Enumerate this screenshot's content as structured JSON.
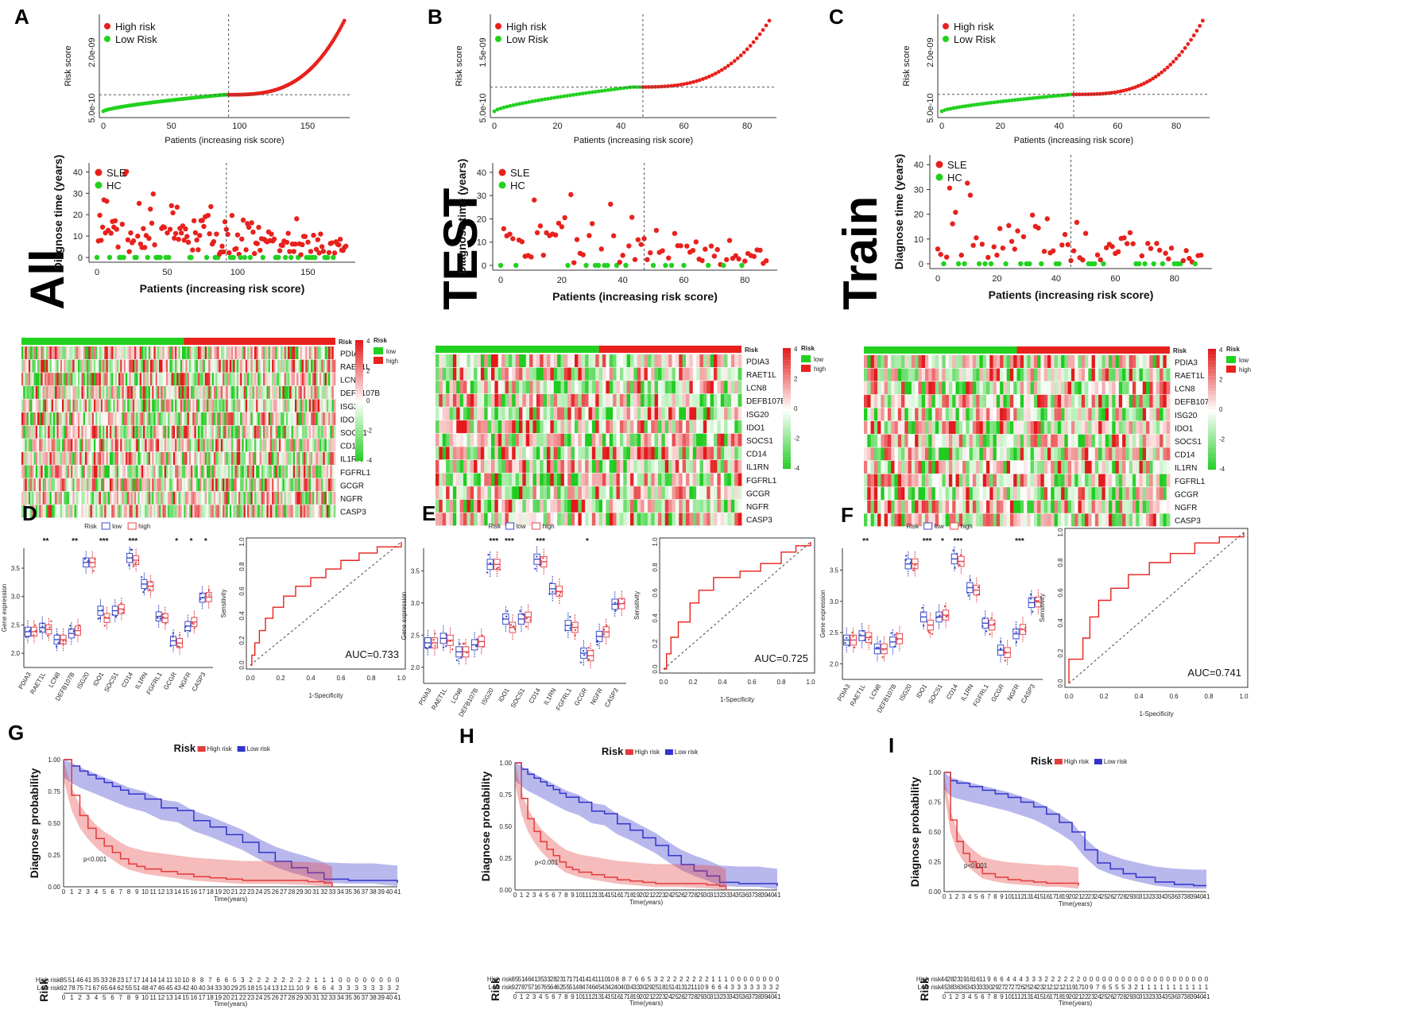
{
  "figure": {
    "panel_labels": [
      "A",
      "B",
      "C",
      "D",
      "E",
      "F",
      "G",
      "H",
      "I"
    ],
    "set_titles": [
      "All",
      "TEST",
      "Train"
    ],
    "colors": {
      "high": "#e8211c",
      "low": "#22d11f",
      "heat_high": "#e31a1c",
      "heat_mid": "#ffffff",
      "heat_low": "#1fcc1f",
      "box_low": "#3a4cc8",
      "box_high": "#e5454a",
      "km_high": "#e43b3b",
      "km_low": "#3333cc"
    }
  },
  "chart_data": [
    {
      "type": "scatter",
      "id": "risk-score",
      "set": "All",
      "xlabel": "Patients (increasing risk score)",
      "ylabel": "Risk score",
      "x_ticks": [
        "0",
        "50",
        "100",
        "150"
      ],
      "y_ticks": [
        "5.0e-10",
        "2.0e-09"
      ],
      "legend": [
        "High risk",
        "Low Risk"
      ],
      "n_patients": 178,
      "cutoff_index": 92,
      "values_summary": {
        "min": 2.5e-10,
        "median": 6.5e-10,
        "max": 2.45e-09
      }
    },
    {
      "type": "scatter",
      "id": "risk-score",
      "set": "TEST",
      "xlabel": "Patients (increasing risk score)",
      "ylabel": "Risk score",
      "x_ticks": [
        "0",
        "20",
        "40",
        "60",
        "80"
      ],
      "y_ticks": [
        "5.0e-10",
        "1.5e-09"
      ],
      "legend": [
        "High risk",
        "Low Risk"
      ],
      "n_patients": 88,
      "cutoff_index": 47,
      "values_summary": {
        "min": 2.5e-10,
        "median": 6.5e-10,
        "max": 1.75e-09
      }
    },
    {
      "type": "scatter",
      "id": "risk-score",
      "set": "Train",
      "xlabel": "Patients (increasing risk score)",
      "ylabel": "Risk score",
      "x_ticks": [
        "0",
        "20",
        "40",
        "60",
        "80"
      ],
      "y_ticks": [
        "5.0e-10",
        "2.0e-09"
      ],
      "legend": [
        "High risk",
        "Low Risk"
      ],
      "n_patients": 90,
      "cutoff_index": 45,
      "values_summary": {
        "min": 2.5e-10,
        "median": 6.5e-10,
        "max": 2.4e-09
      }
    },
    {
      "type": "scatter",
      "id": "diagnose-time",
      "set": "All",
      "xlabel": "Patients (increasing risk score)",
      "ylabel": "Diagnose time (years)",
      "x_ticks": [
        "0",
        "50",
        "100",
        "150"
      ],
      "y_ticks": [
        "0",
        "10",
        "20",
        "30",
        "40"
      ],
      "legend": [
        "SLE",
        "HC"
      ],
      "ylim": [
        0,
        42
      ]
    },
    {
      "type": "scatter",
      "id": "diagnose-time",
      "set": "TEST",
      "xlabel": "Patients (increasing risk score)",
      "ylabel": "Diagnose time (years)",
      "x_ticks": [
        "0",
        "20",
        "40",
        "60",
        "80"
      ],
      "y_ticks": [
        "0",
        "10",
        "20",
        "30",
        "40"
      ],
      "legend": [
        "SLE",
        "HC"
      ],
      "ylim": [
        0,
        42
      ]
    },
    {
      "type": "scatter",
      "id": "diagnose-time",
      "set": "Train",
      "xlabel": "Patients (increasing risk score)",
      "ylabel": "Diagnose time (years)",
      "x_ticks": [
        "0",
        "20",
        "40",
        "60",
        "80"
      ],
      "y_ticks": [
        "0",
        "10",
        "20",
        "30",
        "40"
      ],
      "legend": [
        "SLE",
        "HC"
      ],
      "ylim": [
        0,
        42
      ]
    },
    {
      "type": "heatmap",
      "id": "gene-heatmap",
      "rows": [
        "PDIA3",
        "RAET1L",
        "LCN8",
        "DEFB107B",
        "ISG20",
        "IDO1",
        "SOCS1",
        "CD14",
        "IL1RN",
        "FGFRL1",
        "GCGR",
        "NGFR",
        "CASP3"
      ],
      "annotation_label": "Risk",
      "legend_title": "Risk",
      "legend_entries": [
        "low",
        "high"
      ],
      "scale_ticks": [
        "4",
        "2",
        "0",
        "-2",
        "-4"
      ],
      "scale_range": [
        -4,
        4
      ]
    },
    {
      "type": "box",
      "id": "gene-expression",
      "categories": [
        "PDIA3",
        "RAET1L",
        "LCN8",
        "DEFB107B",
        "ISG20",
        "IDO1",
        "SOCS1",
        "CD14",
        "IL1RN",
        "FGFRL1",
        "GCGR",
        "NGFR",
        "CASP3"
      ],
      "ylabel": "Gene expression",
      "legend_title": "Risk",
      "legend": [
        "low",
        "high"
      ],
      "y_ticks": [
        "2.0",
        "2.5",
        "3.0",
        "3.5"
      ],
      "ylim": [
        1.75,
        3.85
      ],
      "series": [
        {
          "name": "low",
          "medians": [
            2.38,
            2.45,
            2.24,
            2.35,
            3.6,
            2.75,
            2.75,
            3.68,
            3.22,
            2.65,
            2.22,
            2.48,
            2.98
          ]
        },
        {
          "name": "high",
          "medians": [
            2.38,
            2.42,
            2.24,
            2.4,
            3.6,
            2.62,
            2.78,
            3.64,
            3.18,
            2.62,
            2.18,
            2.55,
            2.99
          ]
        }
      ],
      "significance": {
        "D": [
          "",
          "**",
          "",
          "**",
          "",
          "***",
          "",
          "***",
          "",
          "",
          "*",
          "*",
          "*"
        ],
        "E": [
          "",
          "",
          "",
          "",
          "***",
          "***",
          "",
          "***",
          "",
          "",
          "*",
          "",
          ""
        ],
        "F": [
          "",
          "**",
          "",
          "",
          "",
          "***",
          "*",
          "***",
          "",
          "",
          "",
          "***",
          ""
        ]
      }
    },
    {
      "type": "line",
      "id": "roc",
      "xlabel": "1-Specificity",
      "ylabel": "Sensitivity",
      "x_ticks": [
        "0.0",
        "0.2",
        "0.4",
        "0.6",
        "0.8",
        "1.0"
      ],
      "y_ticks": [
        "0.0",
        "0.2",
        "0.4",
        "0.6",
        "0.8",
        "1.0"
      ],
      "auc": [
        "AUC=0.733",
        "AUC=0.725",
        "AUC=0.741"
      ],
      "curves": [
        [
          [
            0,
            0
          ],
          [
            0.01,
            0.08
          ],
          [
            0.03,
            0.18
          ],
          [
            0.06,
            0.28
          ],
          [
            0.1,
            0.38
          ],
          [
            0.15,
            0.47
          ],
          [
            0.22,
            0.56
          ],
          [
            0.3,
            0.64
          ],
          [
            0.4,
            0.71
          ],
          [
            0.5,
            0.78
          ],
          [
            0.6,
            0.85
          ],
          [
            0.72,
            0.91
          ],
          [
            0.84,
            0.96
          ],
          [
            1,
            1
          ]
        ],
        [
          [
            0,
            0
          ],
          [
            0.02,
            0.12
          ],
          [
            0.05,
            0.25
          ],
          [
            0.1,
            0.37
          ],
          [
            0.18,
            0.52
          ],
          [
            0.24,
            0.62
          ],
          [
            0.34,
            0.72
          ],
          [
            0.52,
            0.77
          ],
          [
            0.66,
            0.83
          ],
          [
            0.8,
            0.92
          ],
          [
            0.9,
            0.97
          ],
          [
            1,
            1
          ]
        ],
        [
          [
            0,
            0
          ],
          [
            0.0,
            0.16
          ],
          [
            0.06,
            0.16
          ],
          [
            0.08,
            0.3
          ],
          [
            0.12,
            0.44
          ],
          [
            0.17,
            0.55
          ],
          [
            0.24,
            0.63
          ],
          [
            0.34,
            0.72
          ],
          [
            0.46,
            0.8
          ],
          [
            0.58,
            0.86
          ],
          [
            0.72,
            0.93
          ],
          [
            0.86,
            0.97
          ],
          [
            1,
            1
          ]
        ]
      ]
    },
    {
      "type": "line",
      "id": "km-curve",
      "title": "Risk",
      "legend": [
        "High risk",
        "Low risk"
      ],
      "xlabel": "Time(years)",
      "ylabel": "Diagnose probability",
      "pvalue": "p<0.001",
      "x_ticks": [
        "0",
        "1",
        "2",
        "3",
        "4",
        "5",
        "6",
        "7",
        "8",
        "9",
        "10",
        "11",
        "12",
        "13",
        "14",
        "15",
        "16",
        "17",
        "18",
        "19",
        "20",
        "21",
        "22",
        "23",
        "24",
        "25",
        "26",
        "27",
        "28",
        "29",
        "30",
        "31",
        "32",
        "33",
        "34",
        "35",
        "36",
        "37",
        "38",
        "39",
        "40",
        "41"
      ],
      "y_ticks": [
        "0.00",
        "0.25",
        "0.50",
        "0.75",
        "1.00"
      ],
      "risk_table_title": "Risk",
      "risk_table_rows": [
        "High risk",
        "Low risk"
      ],
      "high_curve": [
        [
          0,
          1
        ],
        [
          1,
          0.72
        ],
        [
          2,
          0.56
        ],
        [
          3,
          0.46
        ],
        [
          4,
          0.38
        ],
        [
          5,
          0.32
        ],
        [
          6,
          0.27
        ],
        [
          7,
          0.22
        ],
        [
          8,
          0.18
        ],
        [
          9,
          0.16
        ],
        [
          10,
          0.14
        ],
        [
          12,
          0.12
        ],
        [
          14,
          0.1
        ],
        [
          16,
          0.08
        ],
        [
          18,
          0.07
        ],
        [
          20,
          0.06
        ],
        [
          22,
          0.05
        ],
        [
          26,
          0.05
        ],
        [
          30,
          0.04
        ],
        [
          32,
          0.03
        ],
        [
          33,
          0.0
        ]
      ],
      "low_curve": [
        [
          0,
          1
        ],
        [
          1,
          0.95
        ],
        [
          2,
          0.91
        ],
        [
          3,
          0.88
        ],
        [
          4,
          0.85
        ],
        [
          5,
          0.82
        ],
        [
          6,
          0.79
        ],
        [
          7,
          0.76
        ],
        [
          8,
          0.73
        ],
        [
          10,
          0.69
        ],
        [
          12,
          0.62
        ],
        [
          14,
          0.6
        ],
        [
          16,
          0.52
        ],
        [
          18,
          0.47
        ],
        [
          20,
          0.41
        ],
        [
          22,
          0.35
        ],
        [
          24,
          0.27
        ],
        [
          26,
          0.2
        ],
        [
          28,
          0.15
        ],
        [
          30,
          0.11
        ],
        [
          32,
          0.06
        ],
        [
          35,
          0.05
        ],
        [
          38,
          0.05
        ],
        [
          41,
          0.03
        ]
      ],
      "train_high_curve": [
        [
          0,
          1
        ],
        [
          1,
          0.6
        ],
        [
          2,
          0.42
        ],
        [
          3,
          0.32
        ],
        [
          4,
          0.25
        ],
        [
          5,
          0.2
        ],
        [
          6,
          0.15
        ],
        [
          8,
          0.12
        ],
        [
          10,
          0.1
        ],
        [
          12,
          0.09
        ],
        [
          14,
          0.08
        ],
        [
          16,
          0.07
        ],
        [
          18,
          0.07
        ],
        [
          21,
          0.05
        ]
      ],
      "train_low_curve": [
        [
          0,
          1
        ],
        [
          1,
          0.93
        ],
        [
          2,
          0.91
        ],
        [
          4,
          0.88
        ],
        [
          6,
          0.85
        ],
        [
          8,
          0.82
        ],
        [
          10,
          0.79
        ],
        [
          12,
          0.75
        ],
        [
          14,
          0.71
        ],
        [
          16,
          0.65
        ],
        [
          18,
          0.58
        ],
        [
          20,
          0.5
        ],
        [
          22,
          0.35
        ],
        [
          24,
          0.24
        ],
        [
          26,
          0.19
        ],
        [
          28,
          0.15
        ],
        [
          30,
          0.12
        ],
        [
          33,
          0.08
        ],
        [
          36,
          0.06
        ],
        [
          39,
          0.05
        ],
        [
          41,
          0.05
        ]
      ],
      "tables": {
        "G": {
          "high": "85 51 46 41 35 33 28 23 17 17 14 14 14 11 10 10 8 8 7 6 6 5 3 2 2 2 2 2 2 2 2 1 1 1 0 0 0 0 0 0 0 0",
          "low": "92 78 75 71 67 65 64 62 55 51 48 47 46 45 43 42 40 40 34 33 30 29 25 18 15 14 13 12 11 10 9 6 6 4 3 3 3 3 3 3 3 2"
        },
        "H": {
          "high": "85 51 46 41 35 33 28 23 17 17 14 14 14 11 10 10 8 8 7 6 6 5 3 2 2 2 2 2 2 2 2 1 1 1 0 0 0 0 0 0 0 0",
          "low": "92 78 75 71 67 65 64 62 55 51 48 47 46 45 43 42 40 40 34 33 30 29 25 18 15 14 13 12 11 10 9 6 6 4 3 3 3 3 3 3 3 2"
        },
        "I": {
          "high": "44 28 23 19 16 16 11 9 6 6 4 4 4 3 3 3 2 2 2 2 2 2 0 0 0 0 0 0 0 0 0 0 0 0 0 0 0 0 0 0 0 0",
          "low": "45 38 36 36 34 33 33 30 29 27 27 27 26 25 24 23 21 21 21 21 19 17 10 9 7 6 5 5 5 3 2 1 1 1 1 1 1 1 1 1 1 1"
        }
      }
    }
  ]
}
